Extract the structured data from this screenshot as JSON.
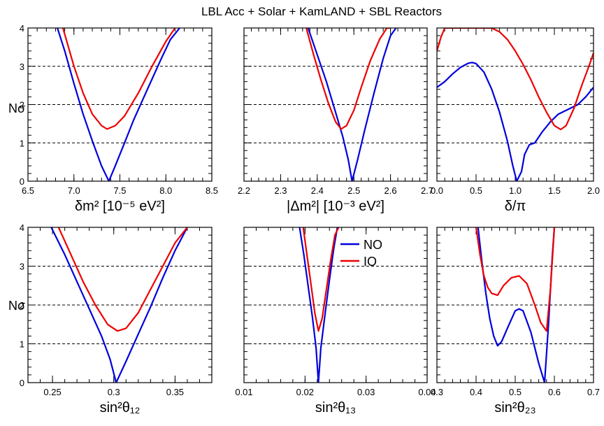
{
  "title": "LBL Acc + Solar + KamLAND + SBL Reactors",
  "ylabel": "Nσ",
  "colors": {
    "NO": "#0000dd",
    "IO": "#ee0000",
    "axis": "#000000",
    "grid": "#000000"
  },
  "legend": {
    "NO": "NO",
    "IO": "IO"
  },
  "chart_data": [
    {
      "type": "line",
      "panel": "delta-m2-small",
      "xlabel": "δm² [10⁻⁵ eV²]",
      "xlim": [
        6.5,
        8.5
      ],
      "ylim": [
        0,
        4
      ],
      "xticks": [
        "6.5",
        "7.0",
        "7.5",
        "8.0",
        "8.5"
      ],
      "yticks": [
        "0",
        "1",
        "2",
        "3",
        "4"
      ],
      "series": [
        {
          "name": "NO",
          "x": [
            6.82,
            6.9,
            7.0,
            7.1,
            7.2,
            7.3,
            7.38,
            7.45,
            7.55,
            7.65,
            7.8,
            7.95,
            8.05,
            8.15
          ],
          "y": [
            4.0,
            3.4,
            2.55,
            1.75,
            1.05,
            0.4,
            0.0,
            0.4,
            1.0,
            1.6,
            2.4,
            3.2,
            3.7,
            4.0
          ]
        },
        {
          "name": "IO",
          "x": [
            6.88,
            7.0,
            7.1,
            7.2,
            7.3,
            7.36,
            7.45,
            7.55,
            7.7,
            7.85,
            8.0,
            8.1
          ],
          "y": [
            4.0,
            3.0,
            2.3,
            1.75,
            1.45,
            1.36,
            1.45,
            1.7,
            2.3,
            3.0,
            3.65,
            4.0
          ]
        }
      ]
    },
    {
      "type": "line",
      "panel": "delta-m2-large",
      "xlabel": "|Δm²| [10⁻³ eV²]",
      "xlim": [
        2.2,
        2.7
      ],
      "ylim": [
        0,
        4
      ],
      "xticks": [
        "2.2",
        "2.3",
        "2.4",
        "2.5",
        "2.6",
        "2.7"
      ],
      "yticks": [
        "0",
        "1",
        "2",
        "3",
        "4"
      ],
      "series": [
        {
          "name": "NO",
          "x": [
            2.375,
            2.4,
            2.425,
            2.45,
            2.47,
            2.485,
            2.495,
            2.51,
            2.53,
            2.555,
            2.58,
            2.6,
            2.615
          ],
          "y": [
            4.0,
            3.3,
            2.6,
            1.8,
            1.15,
            0.55,
            0.0,
            0.55,
            1.35,
            2.3,
            3.2,
            3.8,
            4.0
          ]
        },
        {
          "name": "IO",
          "x": [
            2.37,
            2.39,
            2.41,
            2.43,
            2.45,
            2.465,
            2.48,
            2.5,
            2.52,
            2.545,
            2.57,
            2.59,
            2.6
          ],
          "y": [
            4.0,
            3.3,
            2.65,
            2.05,
            1.55,
            1.36,
            1.45,
            1.85,
            2.45,
            3.15,
            3.7,
            4.0,
            4.0
          ]
        }
      ]
    },
    {
      "type": "line",
      "panel": "delta-cp",
      "xlabel": "δ/π",
      "xlim": [
        0.0,
        2.0
      ],
      "ylim": [
        0,
        4
      ],
      "xticks": [
        "0.0",
        "0.5",
        "1.0",
        "1.5",
        "2.0"
      ],
      "yticks": [
        "0",
        "1",
        "2",
        "3",
        "4"
      ],
      "series": [
        {
          "name": "NO",
          "x": [
            0.0,
            0.1,
            0.2,
            0.3,
            0.4,
            0.45,
            0.5,
            0.6,
            0.7,
            0.8,
            0.9,
            0.97,
            1.02,
            1.08,
            1.12,
            1.18,
            1.25,
            1.35,
            1.45,
            1.55,
            1.7,
            1.8,
            1.9,
            2.0
          ],
          "y": [
            2.45,
            2.6,
            2.8,
            2.97,
            3.08,
            3.1,
            3.07,
            2.85,
            2.4,
            1.8,
            1.05,
            0.4,
            0.0,
            0.25,
            0.7,
            0.95,
            1.0,
            1.3,
            1.55,
            1.75,
            1.9,
            2.0,
            2.2,
            2.45
          ]
        },
        {
          "name": "IO",
          "x": [
            0.0,
            0.05,
            0.1,
            0.2,
            0.3,
            0.4,
            0.5,
            0.6,
            0.7,
            0.8,
            0.9,
            1.0,
            1.1,
            1.2,
            1.3,
            1.4,
            1.5,
            1.58,
            1.65,
            1.75,
            1.85,
            1.95,
            2.0
          ],
          "y": [
            3.4,
            3.75,
            4.0,
            4.0,
            4.0,
            4.0,
            4.0,
            4.0,
            4.0,
            3.9,
            3.7,
            3.4,
            3.05,
            2.65,
            2.2,
            1.8,
            1.45,
            1.35,
            1.45,
            1.9,
            2.5,
            3.05,
            3.35
          ]
        }
      ]
    },
    {
      "type": "line",
      "panel": "theta12",
      "xlabel": "sin²θ₁₂",
      "xlim": [
        0.23,
        0.38
      ],
      "ylim": [
        0,
        4
      ],
      "xticks": [
        "0.25",
        "0.3",
        "0.35"
      ],
      "yticks": [
        "0",
        "1",
        "2",
        "3",
        "4"
      ],
      "series": [
        {
          "name": "NO",
          "x": [
            0.249,
            0.26,
            0.27,
            0.28,
            0.29,
            0.297,
            0.302,
            0.31,
            0.32,
            0.33,
            0.34,
            0.35,
            0.36
          ],
          "y": [
            4.0,
            3.3,
            2.6,
            1.9,
            1.2,
            0.6,
            0.0,
            0.55,
            1.25,
            1.95,
            2.7,
            3.4,
            4.0
          ]
        },
        {
          "name": "IO",
          "x": [
            0.255,
            0.265,
            0.275,
            0.285,
            0.295,
            0.303,
            0.31,
            0.32,
            0.33,
            0.34,
            0.35,
            0.36
          ],
          "y": [
            4.0,
            3.3,
            2.6,
            2.0,
            1.5,
            1.33,
            1.4,
            1.8,
            2.4,
            3.0,
            3.6,
            4.0
          ]
        }
      ]
    },
    {
      "type": "line",
      "panel": "theta13",
      "xlabel": "sin²θ₁₃",
      "xlim": [
        0.01,
        0.04
      ],
      "ylim": [
        0,
        4
      ],
      "xticks": [
        "0.01",
        "0.02",
        "0.03",
        "0.04"
      ],
      "yticks": [
        "0",
        "1",
        "2",
        "3",
        "4"
      ],
      "series": [
        {
          "name": "NO",
          "x": [
            0.0191,
            0.0198,
            0.0205,
            0.0212,
            0.0218,
            0.0222,
            0.0226,
            0.0233,
            0.024,
            0.0247,
            0.0253
          ],
          "y": [
            4.0,
            3.3,
            2.5,
            1.7,
            0.9,
            0.0,
            0.9,
            1.8,
            2.65,
            3.45,
            4.0
          ]
        },
        {
          "name": "IO",
          "x": [
            0.0197,
            0.0203,
            0.021,
            0.0216,
            0.0222,
            0.0228,
            0.0235,
            0.0242,
            0.0249,
            0.0255
          ],
          "y": [
            4.0,
            3.3,
            2.5,
            1.8,
            1.33,
            1.65,
            2.4,
            3.15,
            3.8,
            4.0
          ]
        }
      ]
    },
    {
      "type": "line",
      "panel": "theta23",
      "xlabel": "sin²θ₂₃",
      "xlim": [
        0.3,
        0.7
      ],
      "ylim": [
        0,
        4
      ],
      "xticks": [
        "0.3",
        "0.4",
        "0.5",
        "0.6",
        "0.7"
      ],
      "yticks": [
        "0",
        "1",
        "2",
        "3",
        "4"
      ],
      "series": [
        {
          "name": "NO",
          "x": [
            0.405,
            0.415,
            0.425,
            0.435,
            0.445,
            0.455,
            0.465,
            0.48,
            0.5,
            0.51,
            0.52,
            0.54,
            0.56,
            0.575,
            0.585,
            0.595,
            0.6
          ],
          "y": [
            4.0,
            3.1,
            2.3,
            1.65,
            1.2,
            0.95,
            1.05,
            1.4,
            1.85,
            1.9,
            1.85,
            1.3,
            0.5,
            0.0,
            1.5,
            3.3,
            4.0
          ]
        },
        {
          "name": "IO",
          "x": [
            0.4,
            0.41,
            0.42,
            0.43,
            0.44,
            0.455,
            0.47,
            0.49,
            0.51,
            0.53,
            0.55,
            0.565,
            0.58,
            0.59,
            0.6
          ],
          "y": [
            4.0,
            3.3,
            2.75,
            2.45,
            2.3,
            2.25,
            2.5,
            2.7,
            2.75,
            2.55,
            2.0,
            1.55,
            1.33,
            2.4,
            4.0
          ]
        }
      ]
    }
  ]
}
